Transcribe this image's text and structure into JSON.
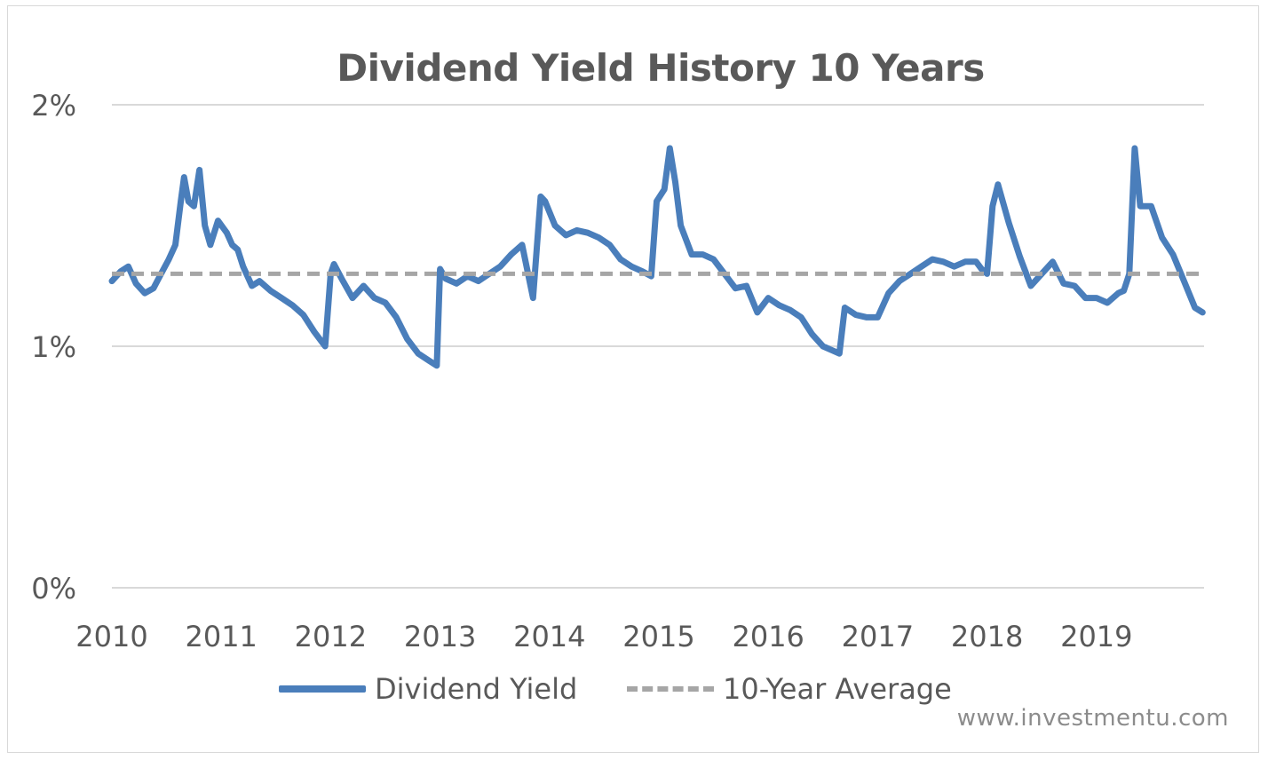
{
  "chart_data": {
    "type": "line",
    "title": "Dividend Yield History 10 Years",
    "xlabel": "",
    "ylabel": "",
    "x_ticks": [
      "2010",
      "2011",
      "2012",
      "2013",
      "2014",
      "2015",
      "2016",
      "2017",
      "2018",
      "2019"
    ],
    "xlim": [
      2010.0,
      2020.0
    ],
    "y_ticks": [
      {
        "value": 0,
        "label": "0%"
      },
      {
        "value": 1,
        "label": "1%"
      },
      {
        "value": 2,
        "label": "2%"
      }
    ],
    "ylim": [
      0,
      2
    ],
    "grid": "horizontal",
    "legend_position": "bottom",
    "series": [
      {
        "name": "Dividend Yield",
        "style": "solid",
        "color": "#4a7ebb",
        "x": [
          2010.0,
          2010.08,
          2010.15,
          2010.22,
          2010.3,
          2010.38,
          2010.45,
          2010.52,
          2010.58,
          2010.63,
          2010.66,
          2010.7,
          2010.75,
          2010.8,
          2010.85,
          2010.9,
          2010.97,
          2011.05,
          2011.1,
          2011.15,
          2011.2,
          2011.28,
          2011.35,
          2011.45,
          2011.55,
          2011.65,
          2011.75,
          2011.85,
          2011.95,
          2012.0,
          2012.03,
          2012.1,
          2012.2,
          2012.3,
          2012.4,
          2012.5,
          2012.6,
          2012.7,
          2012.8,
          2012.9,
          2012.97,
          2013.0,
          2013.05,
          2013.15,
          2013.25,
          2013.35,
          2013.45,
          2013.55,
          2013.65,
          2013.75,
          2013.85,
          2013.92,
          2013.96,
          2014.05,
          2014.15,
          2014.25,
          2014.35,
          2014.45,
          2014.55,
          2014.65,
          2014.75,
          2014.85,
          2014.93,
          2014.98,
          2015.05,
          2015.1,
          2015.15,
          2015.2,
          2015.3,
          2015.4,
          2015.5,
          2015.6,
          2015.7,
          2015.8,
          2015.9,
          2016.0,
          2016.1,
          2016.2,
          2016.3,
          2016.4,
          2016.5,
          2016.6,
          2016.65,
          2016.7,
          2016.8,
          2016.9,
          2017.0,
          2017.1,
          2017.2,
          2017.3,
          2017.4,
          2017.5,
          2017.6,
          2017.7,
          2017.8,
          2017.9,
          2017.95,
          2018.0,
          2018.05,
          2018.1,
          2018.2,
          2018.3,
          2018.4,
          2018.5,
          2018.6,
          2018.7,
          2018.8,
          2018.9,
          2019.0,
          2019.1,
          2019.2,
          2019.25,
          2019.3,
          2019.35,
          2019.4,
          2019.5,
          2019.6,
          2019.7,
          2019.8,
          2019.9,
          2019.97
        ],
        "values": [
          1.27,
          1.31,
          1.33,
          1.26,
          1.22,
          1.24,
          1.3,
          1.36,
          1.42,
          1.6,
          1.7,
          1.6,
          1.58,
          1.73,
          1.5,
          1.42,
          1.52,
          1.47,
          1.42,
          1.4,
          1.33,
          1.25,
          1.27,
          1.23,
          1.2,
          1.17,
          1.13,
          1.06,
          1.0,
          1.3,
          1.34,
          1.28,
          1.2,
          1.25,
          1.2,
          1.18,
          1.12,
          1.03,
          0.97,
          0.94,
          0.92,
          1.32,
          1.28,
          1.26,
          1.29,
          1.27,
          1.3,
          1.33,
          1.38,
          1.42,
          1.2,
          1.62,
          1.6,
          1.5,
          1.46,
          1.48,
          1.47,
          1.45,
          1.42,
          1.36,
          1.33,
          1.31,
          1.29,
          1.6,
          1.65,
          1.82,
          1.68,
          1.5,
          1.38,
          1.38,
          1.36,
          1.3,
          1.24,
          1.25,
          1.14,
          1.2,
          1.17,
          1.15,
          1.12,
          1.05,
          1.0,
          0.98,
          0.97,
          1.16,
          1.13,
          1.12,
          1.12,
          1.22,
          1.27,
          1.3,
          1.33,
          1.36,
          1.35,
          1.33,
          1.35,
          1.35,
          1.32,
          1.3,
          1.58,
          1.67,
          1.51,
          1.37,
          1.25,
          1.3,
          1.35,
          1.26,
          1.25,
          1.2,
          1.2,
          1.18,
          1.22,
          1.23,
          1.3,
          1.82,
          1.58,
          1.58,
          1.45,
          1.38,
          1.27,
          1.16,
          1.14
        ]
      },
      {
        "name": "10-Year Average",
        "style": "dashed",
        "color": "#a6a6a6",
        "x": [
          2010.0,
          2020.0
        ],
        "values": [
          1.3,
          1.3
        ]
      }
    ]
  },
  "watermark": "www.investmentu.com"
}
